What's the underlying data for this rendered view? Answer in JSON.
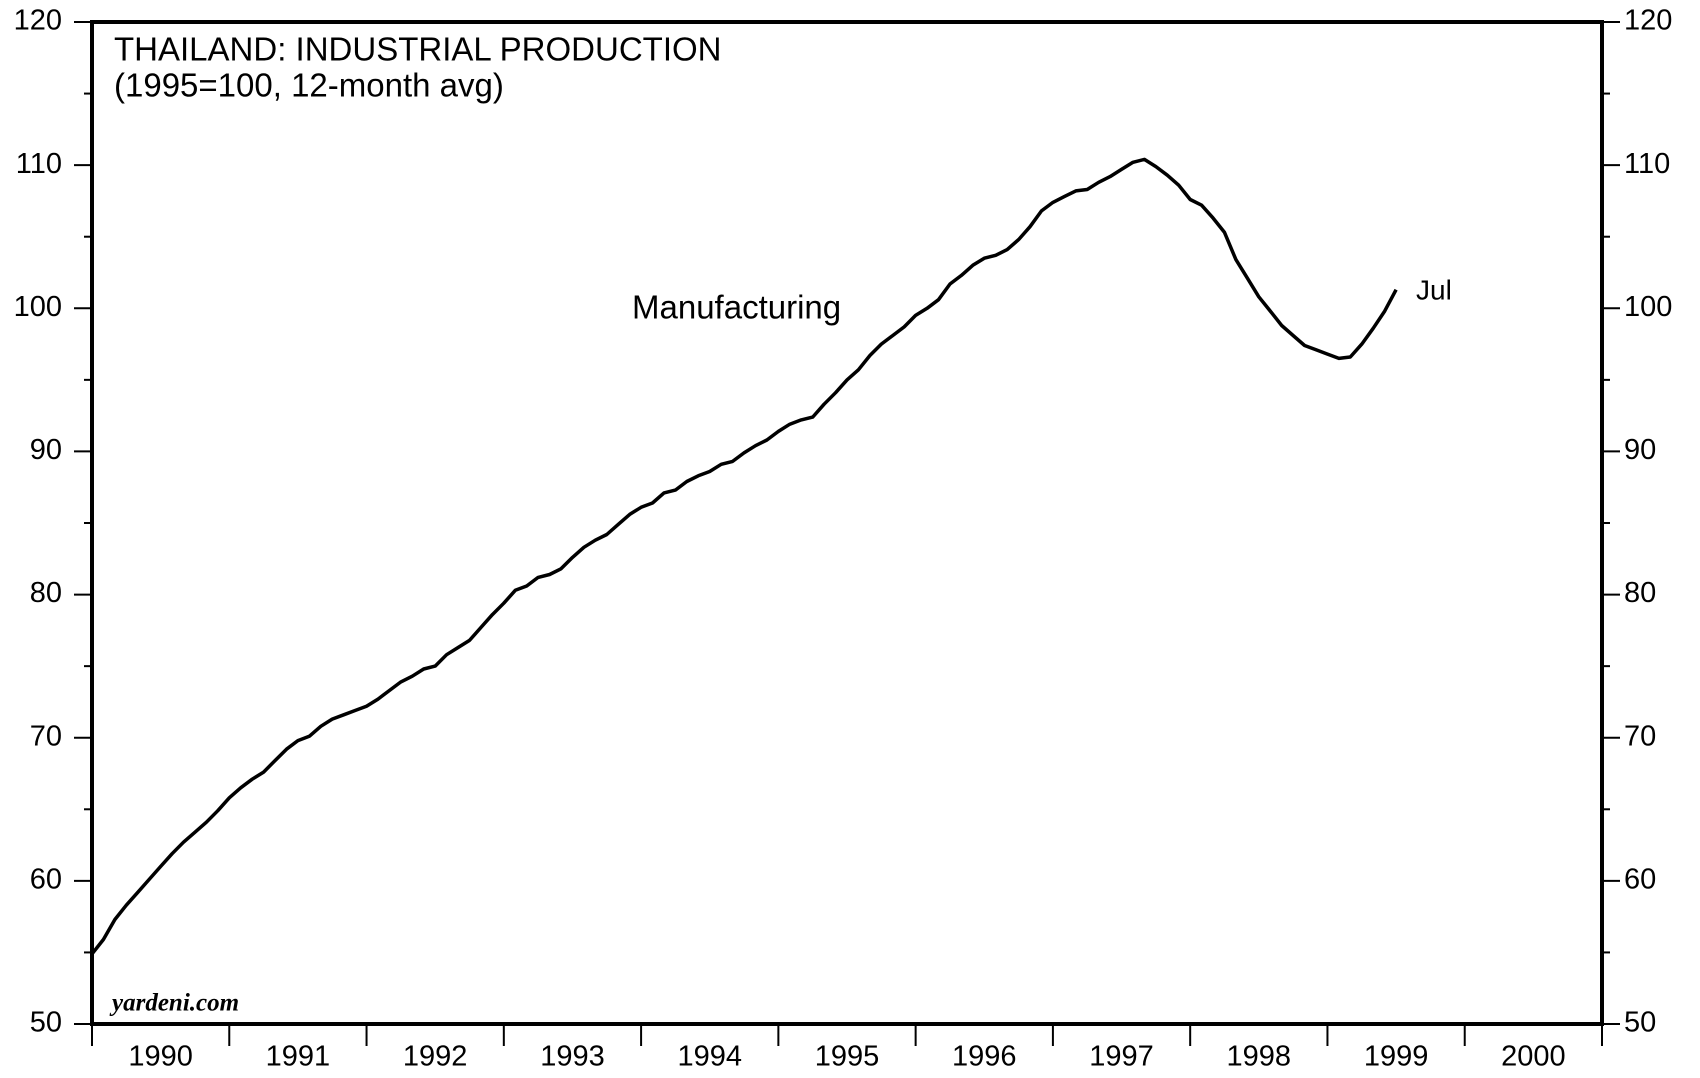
{
  "chart_data": {
    "type": "line",
    "title": "THAILAND: INDUSTRIAL PRODUCTION",
    "subtitle": "(1995=100, 12-month avg)",
    "annotations": [
      "Manufacturing",
      "Jul"
    ],
    "source": "yardeni.com",
    "xlim": [
      1990,
      2001
    ],
    "xticks": [
      1990,
      1991,
      1992,
      1993,
      1994,
      1995,
      1996,
      1997,
      1998,
      1999,
      2000
    ],
    "ylim": [
      50,
      120
    ],
    "yticks": [
      50,
      60,
      70,
      80,
      90,
      100,
      110,
      120
    ],
    "right_axis": true,
    "x": [
      "1990-01",
      "1990-02",
      "1990-03",
      "1990-04",
      "1990-05",
      "1990-06",
      "1990-07",
      "1990-08",
      "1990-09",
      "1990-10",
      "1990-11",
      "1990-12",
      "1991-01",
      "1991-02",
      "1991-03",
      "1991-04",
      "1991-05",
      "1991-06",
      "1991-07",
      "1991-08",
      "1991-09",
      "1991-10",
      "1991-11",
      "1991-12",
      "1992-01",
      "1992-02",
      "1992-03",
      "1992-04",
      "1992-05",
      "1992-06",
      "1992-07",
      "1992-08",
      "1992-09",
      "1992-10",
      "1992-11",
      "1992-12",
      "1993-01",
      "1993-02",
      "1993-03",
      "1993-04",
      "1993-05",
      "1993-06",
      "1993-07",
      "1993-08",
      "1993-09",
      "1993-10",
      "1993-11",
      "1993-12",
      "1994-01",
      "1994-02",
      "1994-03",
      "1994-04",
      "1994-05",
      "1994-06",
      "1994-07",
      "1994-08",
      "1994-09",
      "1994-10",
      "1994-11",
      "1994-12",
      "1995-01",
      "1995-02",
      "1995-03",
      "1995-04",
      "1995-05",
      "1995-06",
      "1995-07",
      "1995-08",
      "1995-09",
      "1995-10",
      "1995-11",
      "1995-12",
      "1996-01",
      "1996-02",
      "1996-03",
      "1996-04",
      "1996-05",
      "1996-06",
      "1996-07",
      "1996-08",
      "1996-09",
      "1996-10",
      "1996-11",
      "1996-12",
      "1997-01",
      "1997-02",
      "1997-03",
      "1997-04",
      "1997-05",
      "1997-06",
      "1997-07",
      "1997-08",
      "1997-09",
      "1997-10",
      "1997-11",
      "1997-12",
      "1998-01",
      "1998-02",
      "1998-03",
      "1998-04",
      "1998-05",
      "1998-06",
      "1998-07",
      "1998-08",
      "1998-09",
      "1998-10",
      "1998-11",
      "1998-12",
      "1999-01",
      "1999-02",
      "1999-03",
      "1999-04",
      "1999-05",
      "1999-06",
      "1999-07"
    ],
    "series": [
      {
        "name": "Manufacturing",
        "color": "#000000",
        "values": [
          54.9,
          55.9,
          57.3,
          58.3,
          59.2,
          60.1,
          61.0,
          61.9,
          62.7,
          63.4,
          64.1,
          64.9,
          65.8,
          66.5,
          67.1,
          67.6,
          68.4,
          69.2,
          69.8,
          70.1,
          70.8,
          71.3,
          71.6,
          71.9,
          72.2,
          72.7,
          73.3,
          73.9,
          74.3,
          74.8,
          75.0,
          75.8,
          76.3,
          76.8,
          77.7,
          78.6,
          79.4,
          80.3,
          80.6,
          81.2,
          81.4,
          81.8,
          82.6,
          83.3,
          83.8,
          84.2,
          84.9,
          85.6,
          86.1,
          86.4,
          87.1,
          87.3,
          87.9,
          88.3,
          88.6,
          89.1,
          89.3,
          89.9,
          90.4,
          90.8,
          91.4,
          91.9,
          92.2,
          92.4,
          93.3,
          94.1,
          95.0,
          95.7,
          96.7,
          97.5,
          98.1,
          98.7,
          99.5,
          100.0,
          100.6,
          101.7,
          102.3,
          103.0,
          103.5,
          103.7,
          104.1,
          104.8,
          105.7,
          106.8,
          107.4,
          107.8,
          108.2,
          108.3,
          108.8,
          109.2,
          109.7,
          110.2,
          110.4,
          109.9,
          109.3,
          108.6,
          107.6,
          107.2,
          106.3,
          105.3,
          103.4,
          102.1,
          100.8,
          99.8,
          98.8,
          98.1,
          97.4,
          97.1,
          96.8,
          96.5,
          96.6,
          97.5,
          98.6,
          99.8,
          101.3
        ]
      }
    ]
  }
}
